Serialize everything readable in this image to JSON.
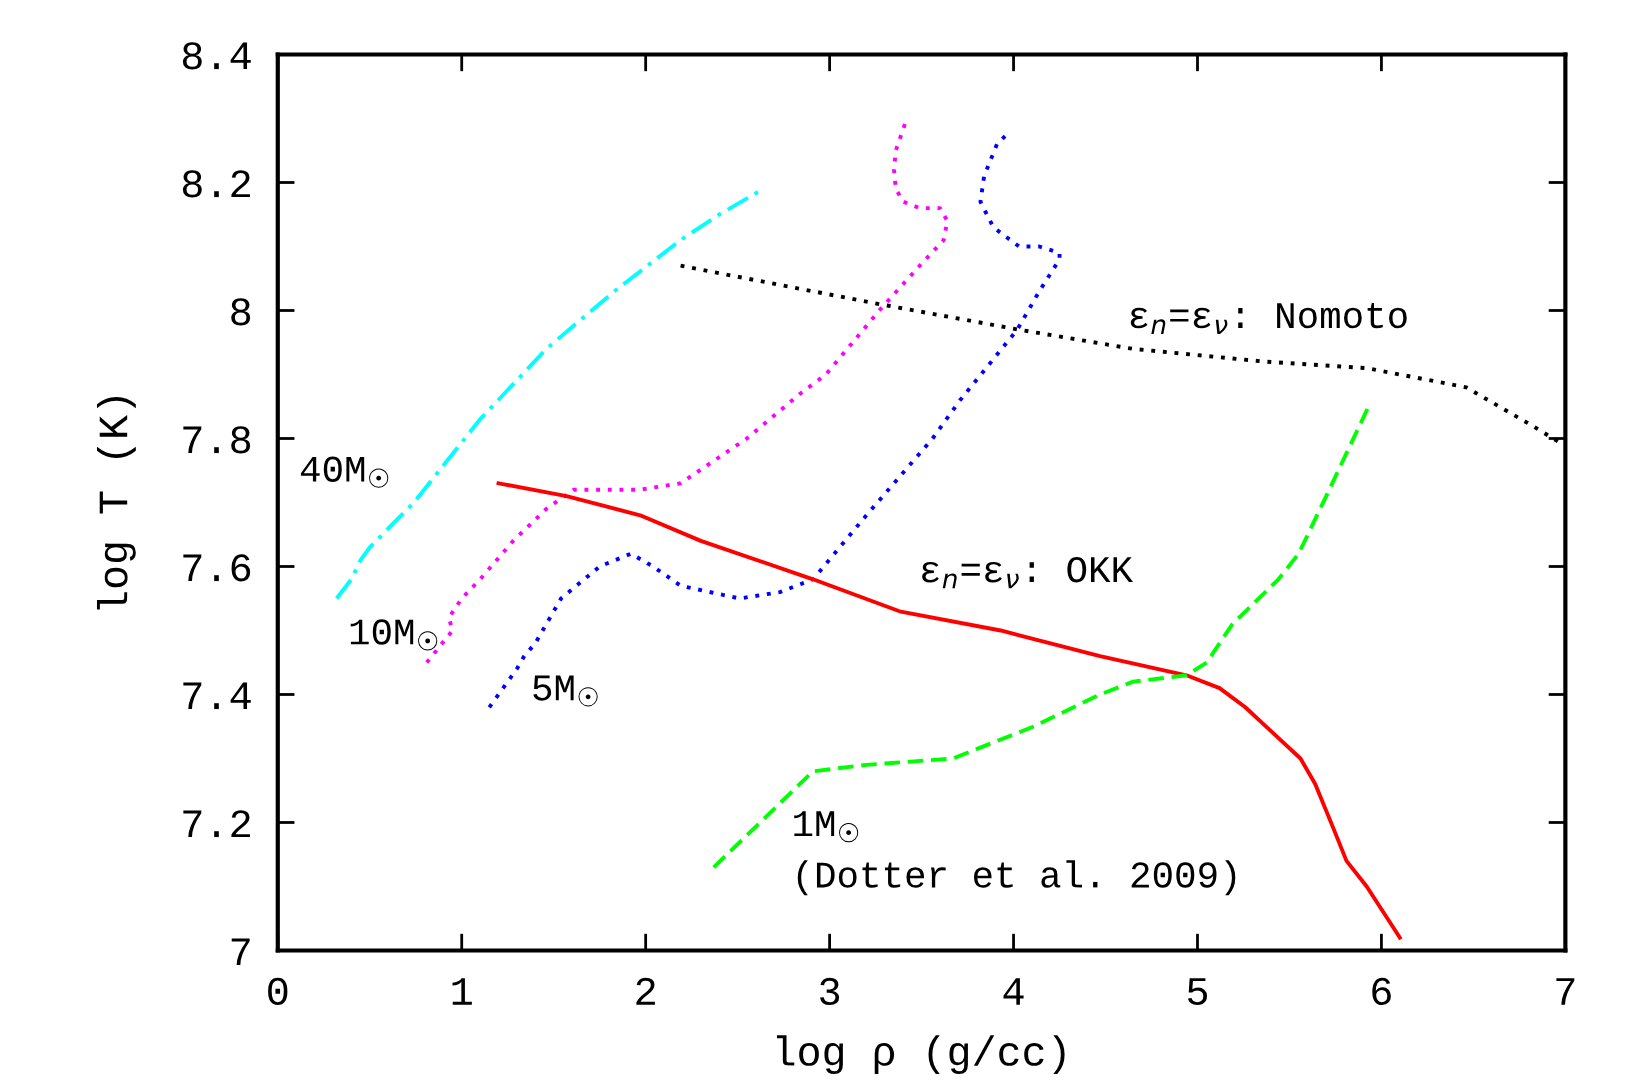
{
  "chart_data": {
    "type": "line",
    "xlabel": "log ρ (g/cc)",
    "ylabel": "log T (K)",
    "xlim": [
      0,
      7
    ],
    "ylim": [
      7,
      8.4
    ],
    "xticks": [
      0,
      1,
      2,
      3,
      4,
      5,
      6,
      7
    ],
    "yticks": [
      7,
      7.2,
      7.4,
      7.6,
      7.8,
      8,
      8.2,
      8.4
    ],
    "series": [
      {
        "name": "40M$_{☉}$",
        "color": "#00ffff",
        "line_style": "dashdot",
        "x": [
          0.32,
          0.4,
          0.45,
          0.5,
          0.74,
          1.1,
          1.46,
          1.83,
          2.19,
          2.4,
          2.64
        ],
        "values": [
          7.55,
          7.58,
          7.61,
          7.63,
          7.7,
          7.83,
          7.94,
          8.03,
          8.11,
          8.15,
          8.19
        ]
      },
      {
        "name": "10M$_{☉}$",
        "color": "#ff00ff",
        "line_style": "dotted",
        "x": [
          0.81,
          0.95,
          0.93,
          1.0,
          1.1,
          1.28,
          1.46,
          1.61,
          1.75,
          1.97,
          2.19,
          2.55,
          2.84,
          2.98,
          3.27,
          3.49,
          3.62,
          3.64,
          3.6,
          3.49,
          3.4,
          3.36,
          3.35,
          3.36,
          3.42
        ],
        "values": [
          7.45,
          7.5,
          7.52,
          7.55,
          7.58,
          7.64,
          7.69,
          7.72,
          7.72,
          7.72,
          7.73,
          7.8,
          7.87,
          7.9,
          8.0,
          8.07,
          8.11,
          8.14,
          8.16,
          8.16,
          8.17,
          8.19,
          8.22,
          8.25,
          8.3
        ]
      },
      {
        "name": "5M$_{☉}$",
        "color": "#0000ff",
        "line_style": "dotted",
        "x": [
          1.15,
          1.3,
          1.34,
          1.4,
          1.54,
          1.75,
          1.92,
          2.04,
          2.19,
          2.51,
          2.73,
          2.91,
          3.2,
          3.56,
          3.71,
          4.02,
          4.14,
          4.25,
          4.25,
          4.14,
          4.03,
          3.89,
          3.82,
          3.84,
          3.91,
          3.98
        ],
        "values": [
          7.38,
          7.44,
          7.46,
          7.48,
          7.55,
          7.6,
          7.62,
          7.6,
          7.57,
          7.55,
          7.56,
          7.58,
          7.68,
          7.8,
          7.86,
          7.97,
          8.03,
          8.08,
          8.09,
          8.1,
          8.1,
          8.13,
          8.17,
          8.21,
          8.26,
          8.28
        ]
      },
      {
        "name": "ε$_{n}$=ε$_{ν}$: OKK",
        "color": "#ff0000",
        "line_style": "solid",
        "x": [
          1.2,
          1.57,
          1.97,
          2.3,
          2.91,
          3.38,
          3.93,
          4.47,
          4.94,
          5.12,
          5.26,
          5.41,
          5.56,
          5.64,
          5.74,
          5.81,
          5.92,
          6.1
        ],
        "values": [
          7.73,
          7.71,
          7.68,
          7.64,
          7.58,
          7.53,
          7.5,
          7.46,
          7.43,
          7.41,
          7.38,
          7.34,
          7.3,
          7.26,
          7.19,
          7.14,
          7.1,
          7.02
        ]
      },
      {
        "name": "1M$_{☉}$\n(Dotter et al. 2009)",
        "color": "#00ff00",
        "line_style": "dashed",
        "x": [
          2.37,
          2.91,
          3.2,
          3.67,
          4.11,
          4.47,
          4.65,
          4.94,
          5.05,
          5.19,
          5.44,
          5.55,
          5.7,
          5.93
        ],
        "values": [
          7.13,
          7.28,
          7.29,
          7.3,
          7.35,
          7.4,
          7.42,
          7.43,
          7.45,
          7.51,
          7.58,
          7.62,
          7.71,
          7.85
        ]
      },
      {
        "name": "ε$_{n}$=ε$_{ν}$: Nomoto",
        "color": "#000000",
        "line_style": "dotted",
        "x": [
          2.19,
          3.27,
          4.03,
          4.65,
          5.37,
          5.92,
          6.46,
          6.82,
          6.99
        ],
        "values": [
          8.07,
          8.01,
          7.97,
          7.94,
          7.92,
          7.91,
          7.88,
          7.82,
          7.79
        ]
      }
    ]
  }
}
